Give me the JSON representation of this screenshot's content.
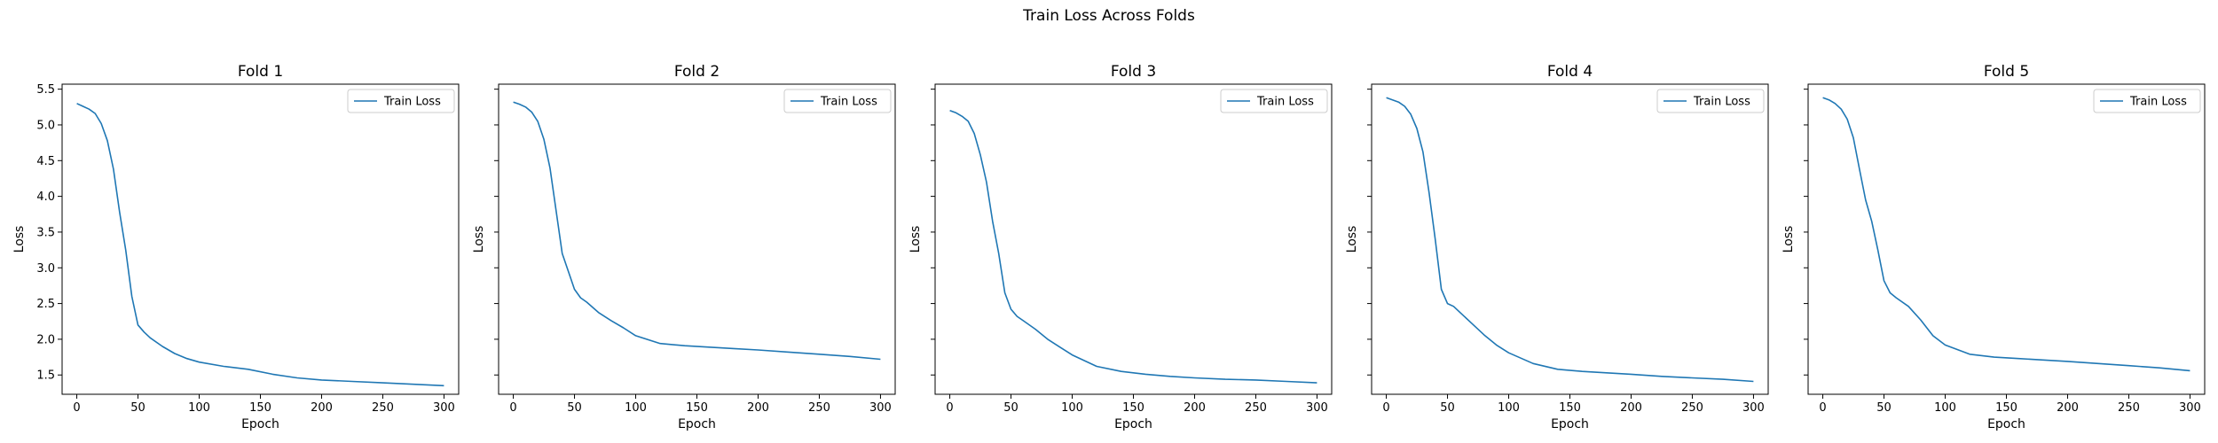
{
  "figure": {
    "suptitle": "Train Loss Across Folds"
  },
  "chart_data": [
    {
      "type": "line",
      "title": "Fold 1",
      "xlabel": "Epoch",
      "ylabel": "Loss",
      "xlim": [
        -12,
        312
      ],
      "ylim": [
        1.23,
        5.57
      ],
      "xticks": [
        0,
        50,
        100,
        150,
        200,
        250,
        300
      ],
      "yticks": [
        1.5,
        2.0,
        2.5,
        3.0,
        3.5,
        4.0,
        4.5,
        5.0,
        5.5
      ],
      "ytick_labels_visible": true,
      "legend": "upper right",
      "color": "#1f77b4",
      "series": [
        {
          "name": "Train Loss",
          "x": [
            0,
            5,
            10,
            15,
            20,
            25,
            30,
            35,
            40,
            45,
            50,
            55,
            60,
            70,
            80,
            90,
            100,
            120,
            140,
            160,
            180,
            200,
            225,
            250,
            275,
            300
          ],
          "y": [
            5.3,
            5.26,
            5.22,
            5.16,
            5.02,
            4.78,
            4.38,
            3.78,
            3.25,
            2.6,
            2.2,
            2.1,
            2.02,
            1.9,
            1.8,
            1.73,
            1.68,
            1.62,
            1.58,
            1.51,
            1.46,
            1.43,
            1.41,
            1.39,
            1.37,
            1.35
          ]
        }
      ]
    },
    {
      "type": "line",
      "title": "Fold 2",
      "xlabel": "Epoch",
      "ylabel": "Loss",
      "xlim": [
        -12,
        312
      ],
      "ylim": [
        1.23,
        5.57
      ],
      "xticks": [
        0,
        50,
        100,
        150,
        200,
        250,
        300
      ],
      "yticks": [
        1.5,
        2.0,
        2.5,
        3.0,
        3.5,
        4.0,
        4.5,
        5.0,
        5.5
      ],
      "ytick_labels_visible": false,
      "legend": "upper right",
      "color": "#1f77b4",
      "series": [
        {
          "name": "Train Loss",
          "x": [
            0,
            5,
            10,
            15,
            20,
            25,
            30,
            35,
            40,
            45,
            50,
            55,
            60,
            70,
            80,
            90,
            100,
            120,
            140,
            160,
            180,
            200,
            225,
            250,
            275,
            300
          ],
          "y": [
            5.32,
            5.29,
            5.25,
            5.18,
            5.05,
            4.8,
            4.4,
            3.8,
            3.2,
            2.95,
            2.7,
            2.58,
            2.52,
            2.37,
            2.26,
            2.16,
            2.05,
            1.94,
            1.91,
            1.89,
            1.87,
            1.85,
            1.82,
            1.79,
            1.76,
            1.72
          ]
        }
      ]
    },
    {
      "type": "line",
      "title": "Fold 3",
      "xlabel": "Epoch",
      "ylabel": "Loss",
      "xlim": [
        -12,
        312
      ],
      "ylim": [
        1.23,
        5.57
      ],
      "xticks": [
        0,
        50,
        100,
        150,
        200,
        250,
        300
      ],
      "yticks": [
        1.5,
        2.0,
        2.5,
        3.0,
        3.5,
        4.0,
        4.5,
        5.0,
        5.5
      ],
      "ytick_labels_visible": false,
      "legend": "upper right",
      "color": "#1f77b4",
      "series": [
        {
          "name": "Train Loss",
          "x": [
            0,
            5,
            10,
            15,
            20,
            25,
            30,
            35,
            40,
            45,
            50,
            55,
            60,
            70,
            80,
            90,
            100,
            120,
            140,
            160,
            180,
            200,
            225,
            250,
            275,
            300
          ],
          "y": [
            5.2,
            5.17,
            5.12,
            5.05,
            4.88,
            4.58,
            4.2,
            3.65,
            3.2,
            2.65,
            2.42,
            2.32,
            2.26,
            2.14,
            2.0,
            1.89,
            1.78,
            1.62,
            1.55,
            1.51,
            1.48,
            1.46,
            1.44,
            1.43,
            1.41,
            1.39
          ]
        }
      ]
    },
    {
      "type": "line",
      "title": "Fold 4",
      "xlabel": "Epoch",
      "ylabel": "Loss",
      "xlim": [
        -12,
        312
      ],
      "ylim": [
        1.23,
        5.57
      ],
      "xticks": [
        0,
        50,
        100,
        150,
        200,
        250,
        300
      ],
      "yticks": [
        1.5,
        2.0,
        2.5,
        3.0,
        3.5,
        4.0,
        4.5,
        5.0,
        5.5
      ],
      "ytick_labels_visible": false,
      "legend": "upper right",
      "color": "#1f77b4",
      "series": [
        {
          "name": "Train Loss",
          "x": [
            0,
            5,
            10,
            15,
            20,
            25,
            30,
            35,
            40,
            45,
            50,
            55,
            60,
            70,
            80,
            90,
            100,
            120,
            140,
            160,
            180,
            200,
            225,
            250,
            275,
            300
          ],
          "y": [
            5.38,
            5.35,
            5.32,
            5.26,
            5.15,
            4.95,
            4.62,
            4.05,
            3.4,
            2.7,
            2.5,
            2.46,
            2.38,
            2.22,
            2.06,
            1.92,
            1.81,
            1.66,
            1.58,
            1.55,
            1.53,
            1.51,
            1.48,
            1.46,
            1.44,
            1.41
          ]
        }
      ]
    },
    {
      "type": "line",
      "title": "Fold 5",
      "xlabel": "Epoch",
      "ylabel": "Loss",
      "xlim": [
        -12,
        312
      ],
      "ylim": [
        1.23,
        5.57
      ],
      "xticks": [
        0,
        50,
        100,
        150,
        200,
        250,
        300
      ],
      "yticks": [
        1.5,
        2.0,
        2.5,
        3.0,
        3.5,
        4.0,
        4.5,
        5.0,
        5.5
      ],
      "ytick_labels_visible": false,
      "legend": "upper right",
      "color": "#1f77b4",
      "series": [
        {
          "name": "Train Loss",
          "x": [
            0,
            5,
            10,
            15,
            20,
            25,
            30,
            35,
            40,
            45,
            50,
            55,
            60,
            70,
            80,
            90,
            100,
            120,
            140,
            160,
            180,
            200,
            225,
            250,
            275,
            300
          ],
          "y": [
            5.38,
            5.35,
            5.3,
            5.22,
            5.08,
            4.82,
            4.38,
            3.95,
            3.65,
            3.25,
            2.82,
            2.65,
            2.58,
            2.46,
            2.27,
            2.05,
            1.92,
            1.79,
            1.75,
            1.73,
            1.71,
            1.69,
            1.66,
            1.63,
            1.6,
            1.56
          ]
        }
      ]
    }
  ]
}
